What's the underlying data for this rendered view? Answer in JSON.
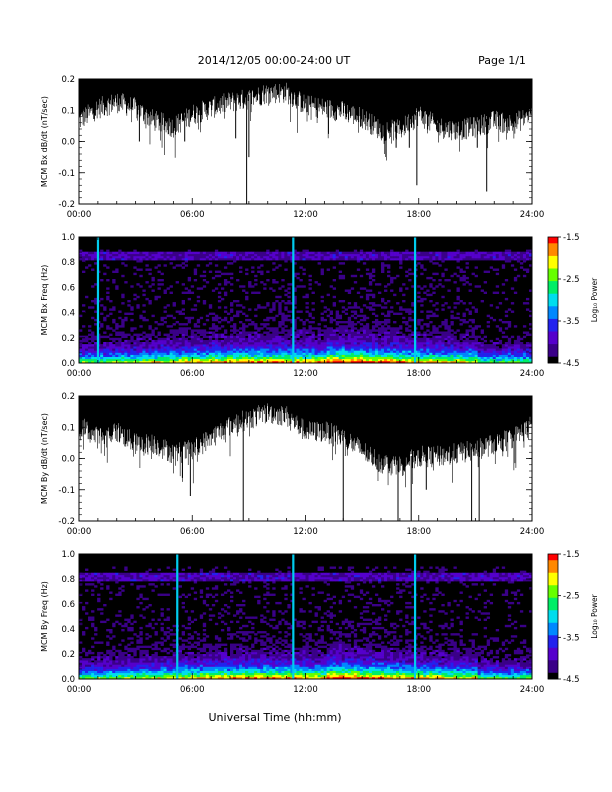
{
  "header": {
    "title": "2014/12/05   00:00-24:00 UT",
    "page": "Page 1/1"
  },
  "xlabel": "Universal Time (hh:mm)",
  "colorbar": {
    "label": "Log₁₀ Power",
    "ticks": [
      "-1.5",
      "-2.5",
      "-3.5",
      "-4.5"
    ],
    "colors": [
      "#ff0000",
      "#ff8800",
      "#ffff00",
      "#66ff00",
      "#00ee66",
      "#00ddee",
      "#0088ff",
      "#2222ee",
      "#5500cc",
      "#3a0088",
      "#000000"
    ]
  },
  "chart_data": [
    {
      "type": "line",
      "ylabel": "MCM Bx dB/dt (nT/sec)",
      "xlim": [
        0,
        24
      ],
      "ylim": [
        -0.2,
        0.2
      ],
      "x_ticks": [
        "00:00",
        "06:00",
        "12:00",
        "18:00",
        "24:00"
      ],
      "y_ticks": [
        "0.2",
        "0.1",
        "0.0",
        "-0.1",
        "-0.2"
      ],
      "envelope_top": 0.2,
      "lower_envelope": [
        [
          0,
          0.08
        ],
        [
          1,
          0.12
        ],
        [
          2,
          0.14
        ],
        [
          3,
          0.12
        ],
        [
          4,
          0.08
        ],
        [
          5,
          0.06
        ],
        [
          6,
          0.1
        ],
        [
          7,
          0.12
        ],
        [
          8,
          0.14
        ],
        [
          9,
          0.15
        ],
        [
          10,
          0.17
        ],
        [
          11,
          0.17
        ],
        [
          12,
          0.13
        ],
        [
          13,
          0.12
        ],
        [
          14,
          0.11
        ],
        [
          15,
          0.09
        ],
        [
          16,
          0.05
        ],
        [
          17,
          0.05
        ],
        [
          18,
          0.1
        ],
        [
          19,
          0.06
        ],
        [
          20,
          0.05
        ],
        [
          21,
          0.06
        ],
        [
          22,
          0.08
        ],
        [
          23,
          0.07
        ],
        [
          24,
          0.1
        ]
      ],
      "spikes": [
        [
          3.2,
          0.0
        ],
        [
          5.6,
          0.0
        ],
        [
          8.3,
          0.01
        ],
        [
          9.0,
          -0.05
        ],
        [
          8.88,
          -0.2
        ],
        [
          16.8,
          -0.02
        ],
        [
          17.5,
          -0.02
        ],
        [
          17.9,
          -0.14
        ],
        [
          19.0,
          0.03
        ],
        [
          21.1,
          -0.02
        ],
        [
          21.6,
          -0.16
        ],
        [
          22.9,
          0.05
        ]
      ]
    },
    {
      "type": "heatmap",
      "ylabel": "MCM Bx Freq (Hz)",
      "xlim": [
        0,
        24
      ],
      "ylim": [
        0,
        1.0
      ],
      "x_ticks": [
        "00:00",
        "06:00",
        "12:00",
        "18:00",
        "24:00"
      ],
      "y_ticks": [
        "1.0",
        "0.8",
        "0.6",
        "0.4",
        "0.2",
        "0.0"
      ],
      "zlim": [
        -4.5,
        -1.5
      ],
      "band_hz": 0.85,
      "streaks_hours": [
        1.0,
        11.35,
        17.8
      ]
    },
    {
      "type": "line",
      "ylabel": "MCM By dB/dt (nT/sec)",
      "xlim": [
        0,
        24
      ],
      "ylim": [
        -0.2,
        0.2
      ],
      "x_ticks": [
        "00:00",
        "06:00",
        "12:00",
        "18:00",
        "24:00"
      ],
      "y_ticks": [
        "0.2",
        "0.1",
        "0.0",
        "-0.1",
        "-0.2"
      ],
      "envelope_top": 0.2,
      "lower_envelope": [
        [
          0,
          0.12
        ],
        [
          1,
          0.08
        ],
        [
          2,
          0.1
        ],
        [
          3,
          0.06
        ],
        [
          4,
          0.06
        ],
        [
          5,
          0.03
        ],
        [
          6,
          0.04
        ],
        [
          7,
          0.08
        ],
        [
          8,
          0.12
        ],
        [
          9,
          0.14
        ],
        [
          10,
          0.16
        ],
        [
          11,
          0.15
        ],
        [
          12,
          0.1
        ],
        [
          13,
          0.1
        ],
        [
          14,
          0.08
        ],
        [
          15,
          0.04
        ],
        [
          16,
          0.0
        ],
        [
          17,
          -0.01
        ],
        [
          18,
          0.02
        ],
        [
          19,
          0.02
        ],
        [
          20,
          0.03
        ],
        [
          21,
          0.04
        ],
        [
          22,
          0.06
        ],
        [
          23,
          0.08
        ],
        [
          24,
          0.12
        ]
      ],
      "spikes": [
        [
          5.9,
          -0.12
        ],
        [
          8.7,
          -0.2
        ],
        [
          14.0,
          -0.2
        ],
        [
          16.9,
          -0.2
        ],
        [
          17.6,
          -0.2
        ],
        [
          20.8,
          -0.2
        ],
        [
          21.2,
          -0.2
        ],
        [
          18.4,
          -0.1
        ]
      ]
    },
    {
      "type": "heatmap",
      "ylabel": "MCM By Freq (Hz)",
      "xlim": [
        0,
        24
      ],
      "ylim": [
        0,
        1.0
      ],
      "x_ticks": [
        "00:00",
        "06:00",
        "12:00",
        "18:00",
        "24:00"
      ],
      "y_ticks": [
        "1.0",
        "0.8",
        "0.6",
        "0.4",
        "0.2",
        "0.0"
      ],
      "zlim": [
        -4.5,
        -1.5
      ],
      "band_hz": 0.82,
      "streaks_hours": [
        5.2,
        11.35,
        17.8
      ]
    }
  ]
}
